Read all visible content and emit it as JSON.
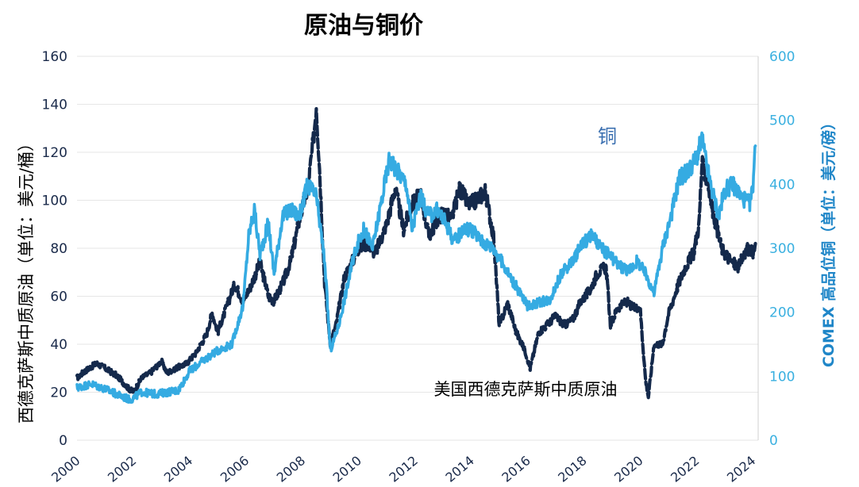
{
  "chart_data": {
    "type": "line",
    "title": "原油与铜价",
    "ylabel_left": "西德克萨斯中质原油（单位：美元/桶）",
    "ylabel_right": "COMEX 高品位铜（单位：美元/磅）",
    "x_ticks": [
      "2000",
      "2002",
      "2004",
      "2006",
      "2008",
      "2010",
      "2012",
      "2014",
      "2016",
      "2018",
      "2020",
      "2022",
      "2024"
    ],
    "xlim": [
      2000,
      2024.2
    ],
    "ylim_left": [
      0,
      160
    ],
    "ylim_right": [
      0,
      600
    ],
    "y_ticks_left": [
      "0",
      "20",
      "40",
      "60",
      "80",
      "100",
      "120",
      "140",
      "160"
    ],
    "y_ticks_right": [
      "0",
      "100",
      "200",
      "300",
      "400",
      "500",
      "600"
    ],
    "grid": true,
    "annotations": {
      "copper": "铜",
      "oil": "美国西德克萨斯中质原油"
    },
    "series": [
      {
        "name": "美国西德克萨斯中质原油",
        "axis": "left",
        "color": "#14294b",
        "style": "dashed",
        "x": [
          2000,
          2000.3,
          2000.7,
          2001,
          2001.4,
          2001.8,
          2002,
          2002.3,
          2002.6,
          2003,
          2003.2,
          2003.5,
          2003.9,
          2004.2,
          2004.6,
          2004.8,
          2005,
          2005.3,
          2005.6,
          2005.9,
          2006.2,
          2006.5,
          2006.8,
          2007,
          2007.3,
          2007.6,
          2007.9,
          2008.2,
          2008.4,
          2008.5,
          2008.6,
          2008.8,
          2009,
          2009.2,
          2009.5,
          2009.8,
          2010,
          2010.3,
          2010.6,
          2011,
          2011.3,
          2011.6,
          2011.9,
          2012.2,
          2012.5,
          2012.8,
          2013,
          2013.3,
          2013.6,
          2013.9,
          2014.2,
          2014.5,
          2014.8,
          2015,
          2015.3,
          2015.6,
          2015.9,
          2016.1,
          2016.4,
          2016.7,
          2017,
          2017.3,
          2017.6,
          2017.9,
          2018.2,
          2018.5,
          2018.8,
          2018.95,
          2019.2,
          2019.5,
          2019.8,
          2020,
          2020.2,
          2020.3,
          2020.5,
          2020.8,
          2021,
          2021.3,
          2021.6,
          2021.9,
          2022.1,
          2022.2,
          2022.4,
          2022.6,
          2022.9,
          2023.2,
          2023.5,
          2023.8,
          2024,
          2024.1
        ],
        "values": [
          26,
          29,
          32,
          30,
          27,
          22,
          20,
          26,
          28,
          33,
          28,
          30,
          32,
          36,
          44,
          53,
          45,
          55,
          65,
          58,
          65,
          74,
          60,
          58,
          65,
          75,
          92,
          105,
          125,
          140,
          118,
          65,
          40,
          48,
          68,
          75,
          80,
          82,
          78,
          90,
          105,
          88,
          98,
          103,
          85,
          92,
          95,
          92,
          105,
          98,
          100,
          104,
          85,
          48,
          57,
          45,
          38,
          30,
          45,
          48,
          52,
          48,
          50,
          58,
          62,
          70,
          72,
          48,
          55,
          58,
          55,
          56,
          25,
          18,
          40,
          40,
          52,
          63,
          72,
          78,
          90,
          115,
          108,
          95,
          80,
          75,
          72,
          80,
          78,
          82
        ]
      },
      {
        "name": "铜",
        "axis": "right",
        "color": "#35abe2",
        "style": "solid",
        "x": [
          2000,
          2000.5,
          2001,
          2001.5,
          2001.9,
          2002.3,
          2002.8,
          2003.2,
          2003.6,
          2004,
          2004.5,
          2005,
          2005.5,
          2005.9,
          2006.1,
          2006.3,
          2006.5,
          2006.8,
          2007,
          2007.3,
          2007.6,
          2007.9,
          2008.2,
          2008.5,
          2008.8,
          2009,
          2009.3,
          2009.6,
          2009.9,
          2010.2,
          2010.5,
          2010.8,
          2011.1,
          2011.4,
          2011.7,
          2011.9,
          2012.2,
          2012.5,
          2012.8,
          2013.1,
          2013.4,
          2013.7,
          2014,
          2014.4,
          2014.8,
          2015.2,
          2015.6,
          2016,
          2016.4,
          2016.8,
          2017.2,
          2017.6,
          2018,
          2018.3,
          2018.6,
          2018.9,
          2019.2,
          2019.6,
          2019.9,
          2020.2,
          2020.5,
          2020.8,
          2021.1,
          2021.4,
          2021.7,
          2022,
          2022.2,
          2022.5,
          2022.8,
          2023,
          2023.3,
          2023.6,
          2023.9,
          2024,
          2024.1
        ],
        "values": [
          82,
          88,
          80,
          70,
          63,
          75,
          72,
          75,
          78,
          108,
          125,
          140,
          150,
          210,
          320,
          360,
          290,
          340,
          260,
          350,
          360,
          350,
          400,
          380,
          280,
          140,
          180,
          240,
          300,
          330,
          300,
          370,
          440,
          420,
          400,
          330,
          380,
          350,
          360,
          340,
          310,
          330,
          330,
          310,
          300,
          270,
          240,
          210,
          215,
          220,
          260,
          280,
          310,
          320,
          300,
          290,
          275,
          265,
          280,
          260,
          230,
          300,
          350,
          410,
          420,
          440,
          470,
          400,
          350,
          390,
          400,
          380,
          370,
          390,
          460
        ]
      }
    ]
  }
}
